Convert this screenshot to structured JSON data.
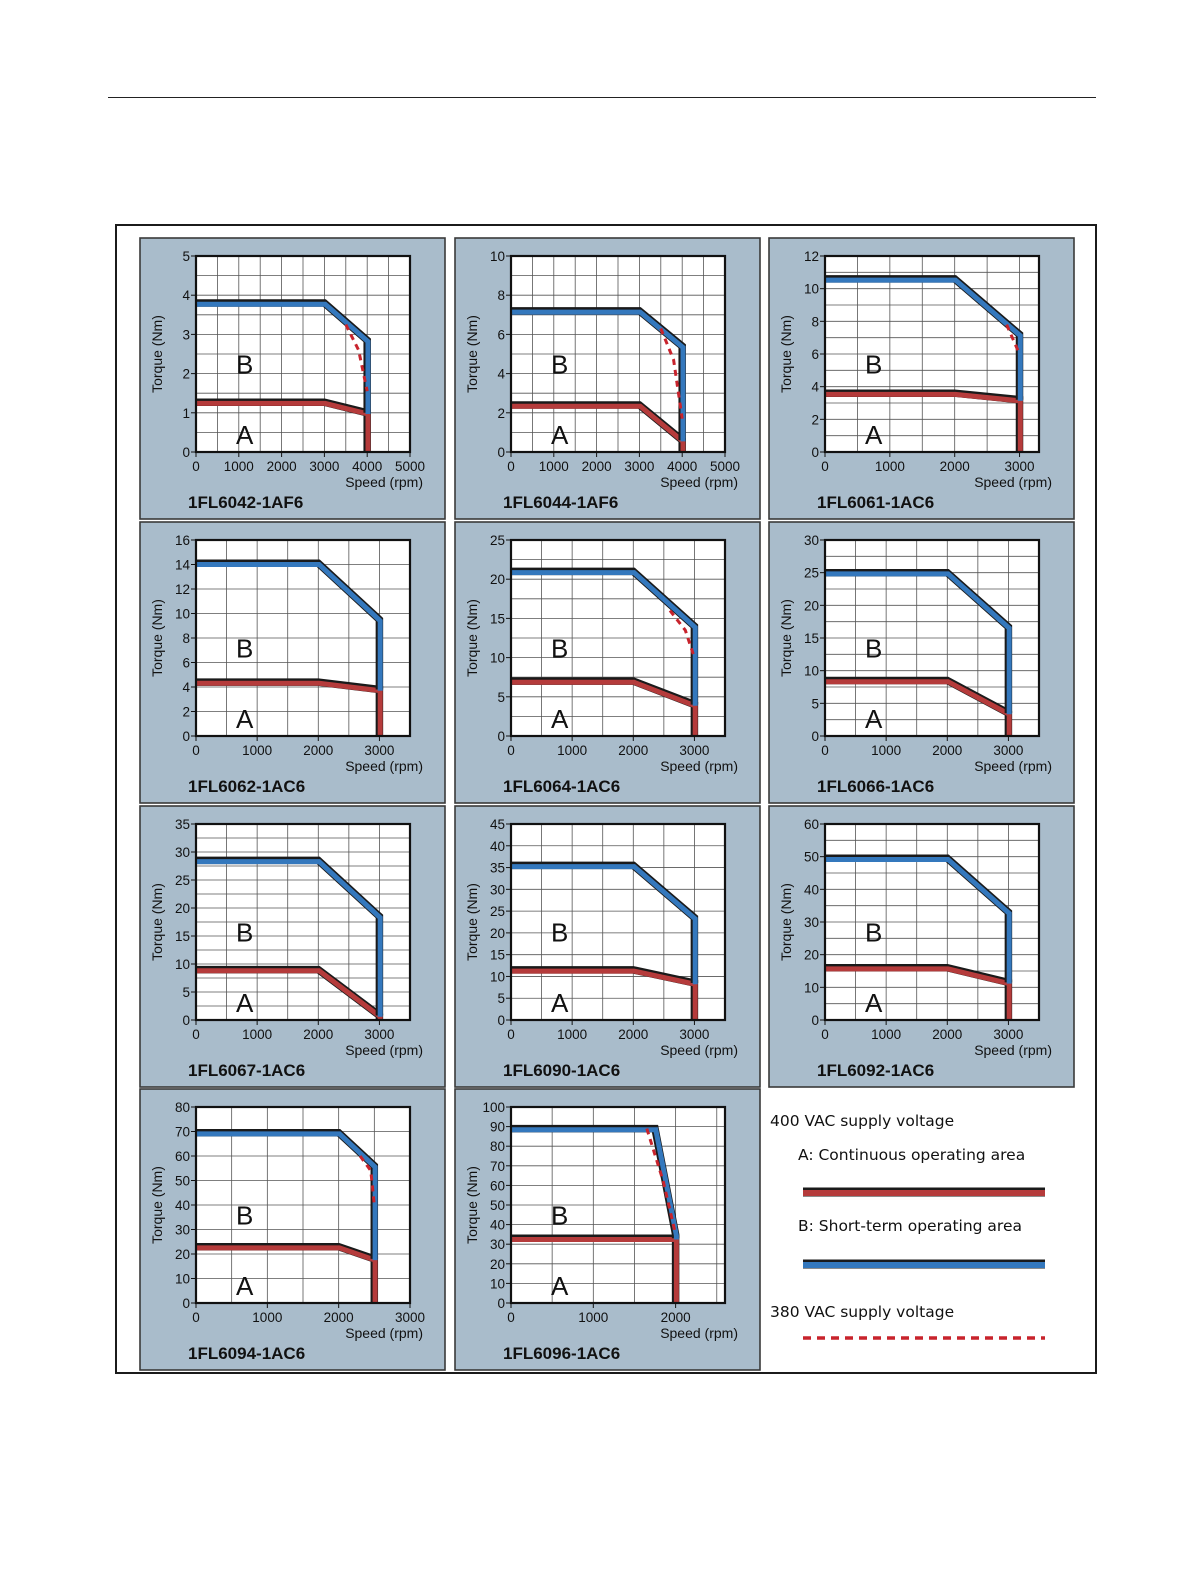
{
  "colors": {
    "panel_bg": "#a9bccb",
    "panel_border": "#3a3a3a",
    "continuous": "#b53b3b",
    "short_term": "#3478bd",
    "dashed_380": "#c8232c",
    "grid": "#555555"
  },
  "legend": {
    "supply_400": "400 VAC supply voltage",
    "area_a": "A: Continuous operating area",
    "area_b": "B: Short-term operating area",
    "supply_380": "380 VAC supply voltage"
  },
  "chart_data": [
    {
      "type": "line",
      "title": "1FL6042-1AF6",
      "xlabel": "Speed (rpm)",
      "ylabel": "Torque (Nm)",
      "xlim": [
        0,
        5000
      ],
      "ylim": [
        0,
        5
      ],
      "xticks": [
        0,
        1000,
        2000,
        3000,
        4000,
        5000
      ],
      "yticks": [
        0,
        1,
        2,
        3,
        4,
        5
      ],
      "region_labels": [
        "A",
        "B"
      ],
      "series": [
        {
          "name": "A",
          "x": [
            0,
            3000,
            4000,
            4000
          ],
          "y": [
            1.27,
            1.27,
            1.0,
            0
          ]
        },
        {
          "name": "B",
          "x": [
            0,
            3000,
            4000,
            4000
          ],
          "y": [
            3.8,
            3.8,
            2.85,
            1.0
          ]
        },
        {
          "name": "380 VAC",
          "x": [
            3500,
            3800,
            4000
          ],
          "y": [
            3.25,
            2.6,
            1.55
          ]
        }
      ]
    },
    {
      "type": "line",
      "title": "1FL6044-1AF6",
      "xlabel": "Speed (rpm)",
      "ylabel": "Torque (Nm)",
      "xlim": [
        0,
        5000
      ],
      "ylim": [
        0,
        10
      ],
      "xticks": [
        0,
        1000,
        2000,
        3000,
        4000,
        5000
      ],
      "yticks": [
        0,
        2,
        4,
        6,
        8,
        10
      ],
      "region_labels": [
        "A",
        "B"
      ],
      "series": [
        {
          "name": "A",
          "x": [
            0,
            3000,
            4000,
            4000
          ],
          "y": [
            2.4,
            2.4,
            0.6,
            0
          ]
        },
        {
          "name": "B",
          "x": [
            0,
            3000,
            4000,
            4000
          ],
          "y": [
            7.2,
            7.2,
            5.4,
            0.6
          ]
        },
        {
          "name": "380 VAC",
          "x": [
            3500,
            3800,
            4000
          ],
          "y": [
            6.3,
            4.7,
            1.7
          ]
        }
      ]
    },
    {
      "type": "line",
      "title": "1FL6061-1AC6",
      "xlabel": "Speed (rpm)",
      "ylabel": "Torque (Nm)",
      "xlim": [
        0,
        3300
      ],
      "ylim": [
        0,
        12
      ],
      "xticks": [
        0,
        1000,
        2000,
        3000
      ],
      "yticks": [
        0,
        2,
        4,
        6,
        8,
        10,
        12
      ],
      "region_labels": [
        "A",
        "B"
      ],
      "series": [
        {
          "name": "A",
          "x": [
            0,
            2000,
            3000,
            3000
          ],
          "y": [
            3.6,
            3.6,
            3.2,
            0
          ]
        },
        {
          "name": "B",
          "x": [
            0,
            2000,
            3000,
            3000
          ],
          "y": [
            10.6,
            10.6,
            7.2,
            3.2
          ]
        },
        {
          "name": "380 VAC",
          "x": [
            2800,
            3000
          ],
          "y": [
            7.8,
            6.0
          ]
        }
      ]
    },
    {
      "type": "line",
      "title": "1FL6062-1AC6",
      "xlabel": "Speed (rpm)",
      "ylabel": "Torque (Nm)",
      "xlim": [
        0,
        3500
      ],
      "ylim": [
        0,
        16
      ],
      "xticks": [
        0,
        1000,
        2000,
        3000
      ],
      "yticks": [
        0,
        2,
        4,
        6,
        8,
        10,
        12,
        14,
        16
      ],
      "region_labels": [
        "A",
        "B"
      ],
      "series": [
        {
          "name": "A",
          "x": [
            0,
            2000,
            3000,
            3000
          ],
          "y": [
            4.4,
            4.4,
            3.8,
            0
          ]
        },
        {
          "name": "B",
          "x": [
            0,
            2000,
            3000,
            3000
          ],
          "y": [
            14.1,
            14.1,
            9.5,
            3.8
          ]
        }
      ]
    },
    {
      "type": "line",
      "title": "1FL6064-1AC6",
      "xlabel": "Speed (rpm)",
      "ylabel": "Torque (Nm)",
      "xlim": [
        0,
        3500
      ],
      "ylim": [
        0,
        25
      ],
      "xticks": [
        0,
        1000,
        2000,
        3000
      ],
      "yticks": [
        0,
        5,
        10,
        15,
        20,
        25
      ],
      "region_labels": [
        "A",
        "B"
      ],
      "series": [
        {
          "name": "A",
          "x": [
            0,
            2000,
            3000,
            3000
          ],
          "y": [
            7.0,
            7.0,
            4.0,
            0
          ]
        },
        {
          "name": "B",
          "x": [
            0,
            2000,
            3000,
            3000
          ],
          "y": [
            21.0,
            21.0,
            14.0,
            4.0
          ]
        },
        {
          "name": "380 VAC",
          "x": [
            2600,
            2850,
            3000
          ],
          "y": [
            16.0,
            13.5,
            10.0
          ]
        }
      ]
    },
    {
      "type": "line",
      "title": "1FL6066-1AC6",
      "xlabel": "Speed (rpm)",
      "ylabel": "Torque (Nm)",
      "xlim": [
        0,
        3500
      ],
      "ylim": [
        0,
        30
      ],
      "xticks": [
        0,
        1000,
        2000,
        3000
      ],
      "yticks": [
        0,
        5,
        10,
        15,
        20,
        25,
        30
      ],
      "region_labels": [
        "A",
        "B"
      ],
      "series": [
        {
          "name": "A",
          "x": [
            0,
            2000,
            3000,
            3000
          ],
          "y": [
            8.5,
            8.5,
            3.5,
            0
          ]
        },
        {
          "name": "B",
          "x": [
            0,
            2000,
            3000,
            3000
          ],
          "y": [
            25.0,
            25.0,
            16.7,
            3.5
          ]
        }
      ]
    },
    {
      "type": "line",
      "title": "1FL6067-1AC6",
      "xlabel": "Speed (rpm)",
      "ylabel": "Torque (Nm)",
      "xlim": [
        0,
        3500
      ],
      "ylim": [
        0,
        35
      ],
      "xticks": [
        0,
        1000,
        2000,
        3000
      ],
      "yticks": [
        0,
        5,
        10,
        15,
        20,
        25,
        30,
        35
      ],
      "region_labels": [
        "A",
        "B"
      ],
      "series": [
        {
          "name": "A",
          "x": [
            0,
            2000,
            3000,
            3000
          ],
          "y": [
            9.0,
            9.0,
            0.8,
            0
          ]
        },
        {
          "name": "B",
          "x": [
            0,
            2000,
            3000,
            3000
          ],
          "y": [
            28.5,
            28.5,
            18.5,
            0.8
          ]
        }
      ]
    },
    {
      "type": "line",
      "title": "1FL6090-1AC6",
      "xlabel": "Speed (rpm)",
      "ylabel": "Torque (Nm)",
      "xlim": [
        0,
        3500
      ],
      "ylim": [
        0,
        45
      ],
      "xticks": [
        0,
        1000,
        2000,
        3000
      ],
      "yticks": [
        0,
        5,
        10,
        15,
        20,
        25,
        30,
        35,
        40,
        45
      ],
      "region_labels": [
        "A",
        "B"
      ],
      "series": [
        {
          "name": "A",
          "x": [
            0,
            2000,
            3000,
            3000
          ],
          "y": [
            11.5,
            11.5,
            8.5,
            0
          ]
        },
        {
          "name": "B",
          "x": [
            0,
            2000,
            3000,
            3000
          ],
          "y": [
            35.5,
            35.5,
            23.5,
            8.5
          ]
        }
      ]
    },
    {
      "type": "line",
      "title": "1FL6092-1AC6",
      "xlabel": "Speed (rpm)",
      "ylabel": "Torque (Nm)",
      "xlim": [
        0,
        3500
      ],
      "ylim": [
        0,
        60
      ],
      "xticks": [
        0,
        1000,
        2000,
        3000
      ],
      "yticks": [
        0,
        10,
        20,
        30,
        40,
        50,
        60
      ],
      "region_labels": [
        "A",
        "B"
      ],
      "series": [
        {
          "name": "A",
          "x": [
            0,
            2000,
            3000,
            3000
          ],
          "y": [
            16.0,
            16.0,
            11.5,
            0
          ]
        },
        {
          "name": "B",
          "x": [
            0,
            2000,
            3000,
            3000
          ],
          "y": [
            49.5,
            49.5,
            33.0,
            11.5
          ]
        }
      ]
    },
    {
      "type": "line",
      "title": "1FL6094-1AC6",
      "xlabel": "Speed (rpm)",
      "ylabel": "Torque (Nm)",
      "xlim": [
        0,
        3000
      ],
      "ylim": [
        0,
        80
      ],
      "xticks": [
        0,
        1000,
        2000,
        3000
      ],
      "yticks": [
        0,
        10,
        20,
        30,
        40,
        50,
        60,
        70,
        80
      ],
      "region_labels": [
        "A",
        "B"
      ],
      "series": [
        {
          "name": "A",
          "x": [
            0,
            2000,
            2500,
            2500
          ],
          "y": [
            23.0,
            23.0,
            18.0,
            0
          ]
        },
        {
          "name": "B",
          "x": [
            0,
            2000,
            2500,
            2500
          ],
          "y": [
            69.5,
            69.5,
            56.0,
            18.0
          ]
        },
        {
          "name": "380 VAC",
          "x": [
            2300,
            2450,
            2500
          ],
          "y": [
            60.0,
            54.0,
            40.0
          ]
        }
      ]
    },
    {
      "type": "line",
      "title": "1FL6096-1AC6",
      "xlabel": "Speed (rpm)",
      "ylabel": "Torque (Nm)",
      "xlim": [
        0,
        2600
      ],
      "ylim": [
        0,
        100
      ],
      "xticks": [
        0,
        1000,
        2000
      ],
      "yticks": [
        0,
        10,
        20,
        30,
        40,
        50,
        60,
        70,
        80,
        90,
        100
      ],
      "region_labels": [
        "A",
        "B"
      ],
      "series": [
        {
          "name": "A",
          "x": [
            0,
            2000,
            2000
          ],
          "y": [
            33.0,
            33.0,
            0
          ]
        },
        {
          "name": "B",
          "x": [
            0,
            1750,
            2000,
            2000
          ],
          "y": [
            89.0,
            89.0,
            35.0,
            33.0
          ]
        },
        {
          "name": "380 VAC",
          "x": [
            1650,
            1850,
            2000
          ],
          "y": [
            89.0,
            62.0,
            35.0
          ]
        }
      ]
    }
  ]
}
